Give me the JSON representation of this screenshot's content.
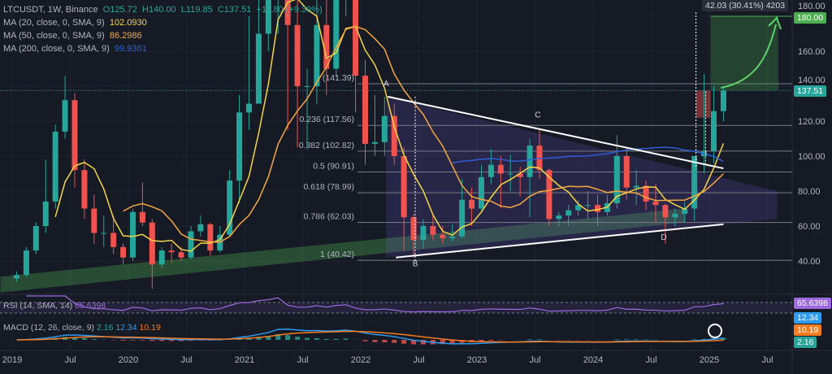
{
  "header": {
    "symbol": "LTCUSDT, 1W, Binance",
    "open": "O125.72",
    "high": "H140.00",
    "low": "L119.85",
    "close": "C137.51",
    "change": "+11.80 (+9.39%)"
  },
  "indicators": [
    {
      "label": "MA (20, close, 0, SMA, 9)",
      "value": "102.0930",
      "color": "#f5d546"
    },
    {
      "label": "MA (50, close, 0, SMA, 9)",
      "value": "86.2986",
      "color": "#f5a742"
    },
    {
      "label": "MA (200, close, 0, SMA, 9)",
      "value": "99.9361",
      "color": "#2f5fd6"
    }
  ],
  "rsi": {
    "label": "RSI (14, SMA, 14)",
    "value": "65.6398",
    "color": "#9c6ade"
  },
  "macd": {
    "label": "MACD (12, 26, close, 9)",
    "hist": "2.16",
    "macd": "12.34",
    "signal": "10.19",
    "colors": {
      "hist": "#26a69a",
      "macd": "#2f9bf0",
      "signal": "#f57c1f"
    }
  },
  "price_axis": {
    "ticks": [
      "180.00",
      "160.00",
      "140.00",
      "120.00",
      "100.00",
      "80.00",
      "60.00",
      "40.00"
    ],
    "last_price": "137.51",
    "target_price": "180.00"
  },
  "measure": {
    "label": "42.03 (30.41%) 4203"
  },
  "chart_data": {
    "type": "candlestick",
    "ylim": [
      0,
      180
    ],
    "y_scale": "linear",
    "x_ticks": [
      "2019",
      "Jul",
      "2020",
      "Jul",
      "2021",
      "Jul",
      "2022",
      "Jul",
      "2023",
      "Jul",
      "2024",
      "Jul",
      "2025",
      "Jul"
    ],
    "x_tick_dates": [
      "2019-01-01",
      "2019-07-01",
      "2020-01-01",
      "2020-07-01",
      "2021-01-01",
      "2021-07-01",
      "2022-01-01",
      "2022-07-01",
      "2023-01-01",
      "2023-07-01",
      "2024-01-01",
      "2024-07-01",
      "2025-01-01",
      "2025-07-01"
    ],
    "y_ticks": [
      180,
      160,
      140,
      120,
      100,
      80,
      60,
      40
    ],
    "grid": true,
    "colors": {
      "up": "#26a69a",
      "down": "#ef5350"
    },
    "candles": [
      [
        "2019-01",
        30,
        34,
        28,
        32
      ],
      [
        "2019-02",
        32,
        48,
        31,
        46
      ],
      [
        "2019-03",
        46,
        62,
        44,
        60
      ],
      [
        "2019-04",
        60,
        98,
        56,
        74
      ],
      [
        "2019-05",
        74,
        118,
        70,
        114
      ],
      [
        "2019-06",
        114,
        146,
        110,
        132
      ],
      [
        "2019-07",
        132,
        136,
        82,
        92
      ],
      [
        "2019-08",
        92,
        98,
        64,
        70
      ],
      [
        "2019-09",
        70,
        78,
        50,
        56
      ],
      [
        "2019-10",
        56,
        66,
        48,
        56
      ],
      [
        "2019-11",
        56,
        66,
        44,
        48
      ],
      [
        "2019-12",
        48,
        50,
        38,
        42
      ],
      [
        "2020-01",
        42,
        70,
        40,
        68
      ],
      [
        "2020-02",
        68,
        85,
        60,
        62
      ],
      [
        "2020-03",
        62,
        64,
        24,
        38
      ],
      [
        "2020-04",
        38,
        48,
        36,
        46
      ],
      [
        "2020-05",
        46,
        50,
        39,
        45
      ],
      [
        "2020-06",
        45,
        48,
        40,
        42
      ],
      [
        "2020-07",
        42,
        60,
        41,
        57
      ],
      [
        "2020-08",
        57,
        66,
        54,
        61
      ],
      [
        "2020-09",
        61,
        62,
        43,
        46
      ],
      [
        "2020-10",
        46,
        60,
        45,
        55
      ],
      [
        "2020-11",
        55,
        92,
        54,
        86
      ],
      [
        "2020-12",
        86,
        135,
        73,
        125
      ],
      [
        "2021-01",
        125,
        180,
        115,
        130
      ],
      [
        "2021-02",
        130,
        246,
        130,
        170
      ],
      [
        "2021-03",
        170,
        200,
        160,
        195
      ],
      [
        "2021-04",
        195,
        300,
        170,
        270
      ],
      [
        "2021-05",
        270,
        400,
        115,
        175
      ],
      [
        "2021-06",
        175,
        195,
        105,
        140
      ],
      [
        "2021-07",
        140,
        150,
        104,
        140
      ],
      [
        "2021-08",
        140,
        190,
        130,
        175
      ],
      [
        "2021-09",
        175,
        230,
        135,
        150
      ],
      [
        "2021-10",
        150,
        215,
        145,
        190
      ],
      [
        "2021-11",
        190,
        295,
        180,
        210
      ],
      [
        "2021-12",
        210,
        230,
        125,
        146
      ],
      [
        "2022-01",
        146,
        155,
        95,
        107
      ],
      [
        "2022-02",
        107,
        135,
        100,
        108
      ],
      [
        "2022-03",
        108,
        134,
        100,
        123
      ],
      [
        "2022-04",
        123,
        130,
        95,
        100
      ],
      [
        "2022-05",
        100,
        105,
        46,
        65
      ],
      [
        "2022-06",
        65,
        67,
        42,
        52
      ],
      [
        "2022-07",
        52,
        64,
        47,
        60
      ],
      [
        "2022-08",
        60,
        66,
        52,
        55
      ],
      [
        "2022-09",
        55,
        60,
        50,
        53
      ],
      [
        "2022-10",
        53,
        61,
        51,
        54
      ],
      [
        "2022-11",
        54,
        87,
        53,
        75
      ],
      [
        "2022-12",
        75,
        82,
        60,
        70
      ],
      [
        "2023-01",
        70,
        95,
        68,
        88
      ],
      [
        "2023-02",
        88,
        104,
        84,
        95
      ],
      [
        "2023-03",
        95,
        100,
        70,
        90
      ],
      [
        "2023-04",
        90,
        101,
        80,
        90
      ],
      [
        "2023-05",
        90,
        94,
        77,
        88
      ],
      [
        "2023-06",
        88,
        110,
        65,
        106
      ],
      [
        "2023-07",
        106,
        115,
        87,
        92
      ],
      [
        "2023-08",
        92,
        93,
        60,
        64
      ],
      [
        "2023-09",
        64,
        68,
        60,
        66
      ],
      [
        "2023-10",
        66,
        72,
        60,
        69
      ],
      [
        "2023-11",
        69,
        75,
        66,
        72
      ],
      [
        "2023-12",
        72,
        80,
        64,
        72
      ],
      [
        "2024-01",
        72,
        78,
        60,
        68
      ],
      [
        "2024-02",
        68,
        78,
        66,
        73
      ],
      [
        "2024-03",
        73,
        112,
        70,
        100
      ],
      [
        "2024-04",
        100,
        105,
        75,
        82
      ],
      [
        "2024-05",
        82,
        92,
        72,
        83
      ],
      [
        "2024-06",
        83,
        86,
        69,
        74
      ],
      [
        "2024-07",
        74,
        84,
        62,
        72
      ],
      [
        "2024-08",
        72,
        73,
        50,
        65
      ],
      [
        "2024-09",
        65,
        70,
        60,
        67
      ],
      [
        "2024-10",
        67,
        74,
        62,
        70
      ],
      [
        "2024-11",
        70,
        100,
        63,
        100
      ],
      [
        "2024-12",
        100,
        147,
        90,
        103
      ],
      [
        "2025-01",
        103,
        140,
        96,
        125.72
      ],
      [
        "2025-02",
        125.72,
        140,
        119.85,
        137.51
      ]
    ],
    "fib_levels": [
      {
        "label": "0 (141.39)",
        "price": 141.39
      },
      {
        "label": "0.236 (117.56)",
        "price": 117.56
      },
      {
        "label": "0.382 (102.82)",
        "price": 102.82
      },
      {
        "label": "0.5 (90.91)",
        "price": 90.91
      },
      {
        "label": "0.618 (78.99)",
        "price": 78.99
      },
      {
        "label": "0.786 (62.03)",
        "price": 62.03
      },
      {
        "label": "1 (40.42)",
        "price": 40.42
      }
    ],
    "trendlines": [
      {
        "from": [
          "2022-03-25",
          134
        ],
        "to": [
          "2025-02-15",
          93
        ]
      },
      {
        "from": [
          "2022-04-20",
          42
        ],
        "to": [
          "2025-02-15",
          61
        ]
      }
    ],
    "points": [
      {
        "label": "A",
        "date": "2022-03-20",
        "price": 140
      },
      {
        "label": "B",
        "date": "2022-06-20",
        "price": 37
      },
      {
        "label": "C",
        "date": "2023-07-10",
        "price": 122
      },
      {
        "label": "D",
        "date": "2024-08-10",
        "price": 52
      }
    ],
    "target_zone": {
      "from_date": "2025-01-05",
      "to_date": "2025-08-05",
      "low": 137.51,
      "high": 180
    },
    "risk_zone": {
      "from_date": "2024-11-20",
      "to_date": "2025-01-05",
      "low": 122,
      "high": 137.51
    }
  }
}
